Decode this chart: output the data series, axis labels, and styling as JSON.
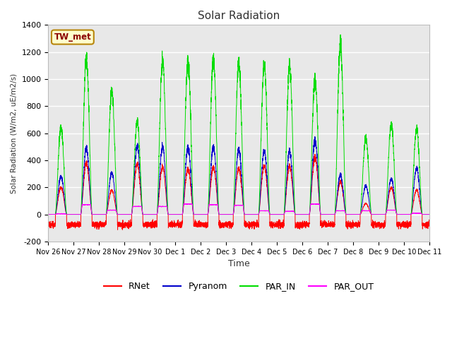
{
  "title": "Solar Radiation",
  "ylabel": "Solar Radiation (W/m2, uE/m2/s)",
  "xlabel": "Time",
  "ylim": [
    -200,
    1400
  ],
  "yticks": [
    -200,
    0,
    200,
    400,
    600,
    800,
    1000,
    1200,
    1400
  ],
  "fig_bg_color": "#ffffff",
  "plot_bg_color": "#e8e8e8",
  "station_label": "TW_met",
  "line_colors": {
    "RNet": "#ff0000",
    "Pyranom": "#0000cc",
    "PAR_IN": "#00dd00",
    "PAR_OUT": "#ff00ff"
  },
  "x_tick_labels": [
    "Nov 26",
    "Nov 27",
    "Nov 28",
    "Nov 29",
    "Nov 30",
    "Dec 1",
    "Dec 2",
    "Dec 3",
    "Dec 4",
    "Dec 5",
    "Dec 6",
    "Dec 7",
    "Dec 8",
    "Dec 9",
    "Dec 10",
    "Dec 11"
  ],
  "par_peaks": [
    640,
    1150,
    920,
    680,
    1135,
    1140,
    1150,
    1120,
    1110,
    1090,
    1010,
    1250,
    560,
    670,
    630
  ],
  "pyranom_peaks": [
    280,
    490,
    310,
    500,
    500,
    500,
    500,
    480,
    470,
    465,
    555,
    290,
    210,
    265,
    340
  ],
  "rnet_peaks": [
    200,
    380,
    180,
    370,
    350,
    340,
    350,
    340,
    360,
    355,
    430,
    240,
    80,
    200,
    180
  ],
  "par_out_peaks": [
    5,
    80,
    35,
    65,
    65,
    85,
    80,
    75,
    30,
    25,
    85,
    30,
    30,
    35,
    10
  ],
  "night_rnet": -75,
  "num_days": 15
}
